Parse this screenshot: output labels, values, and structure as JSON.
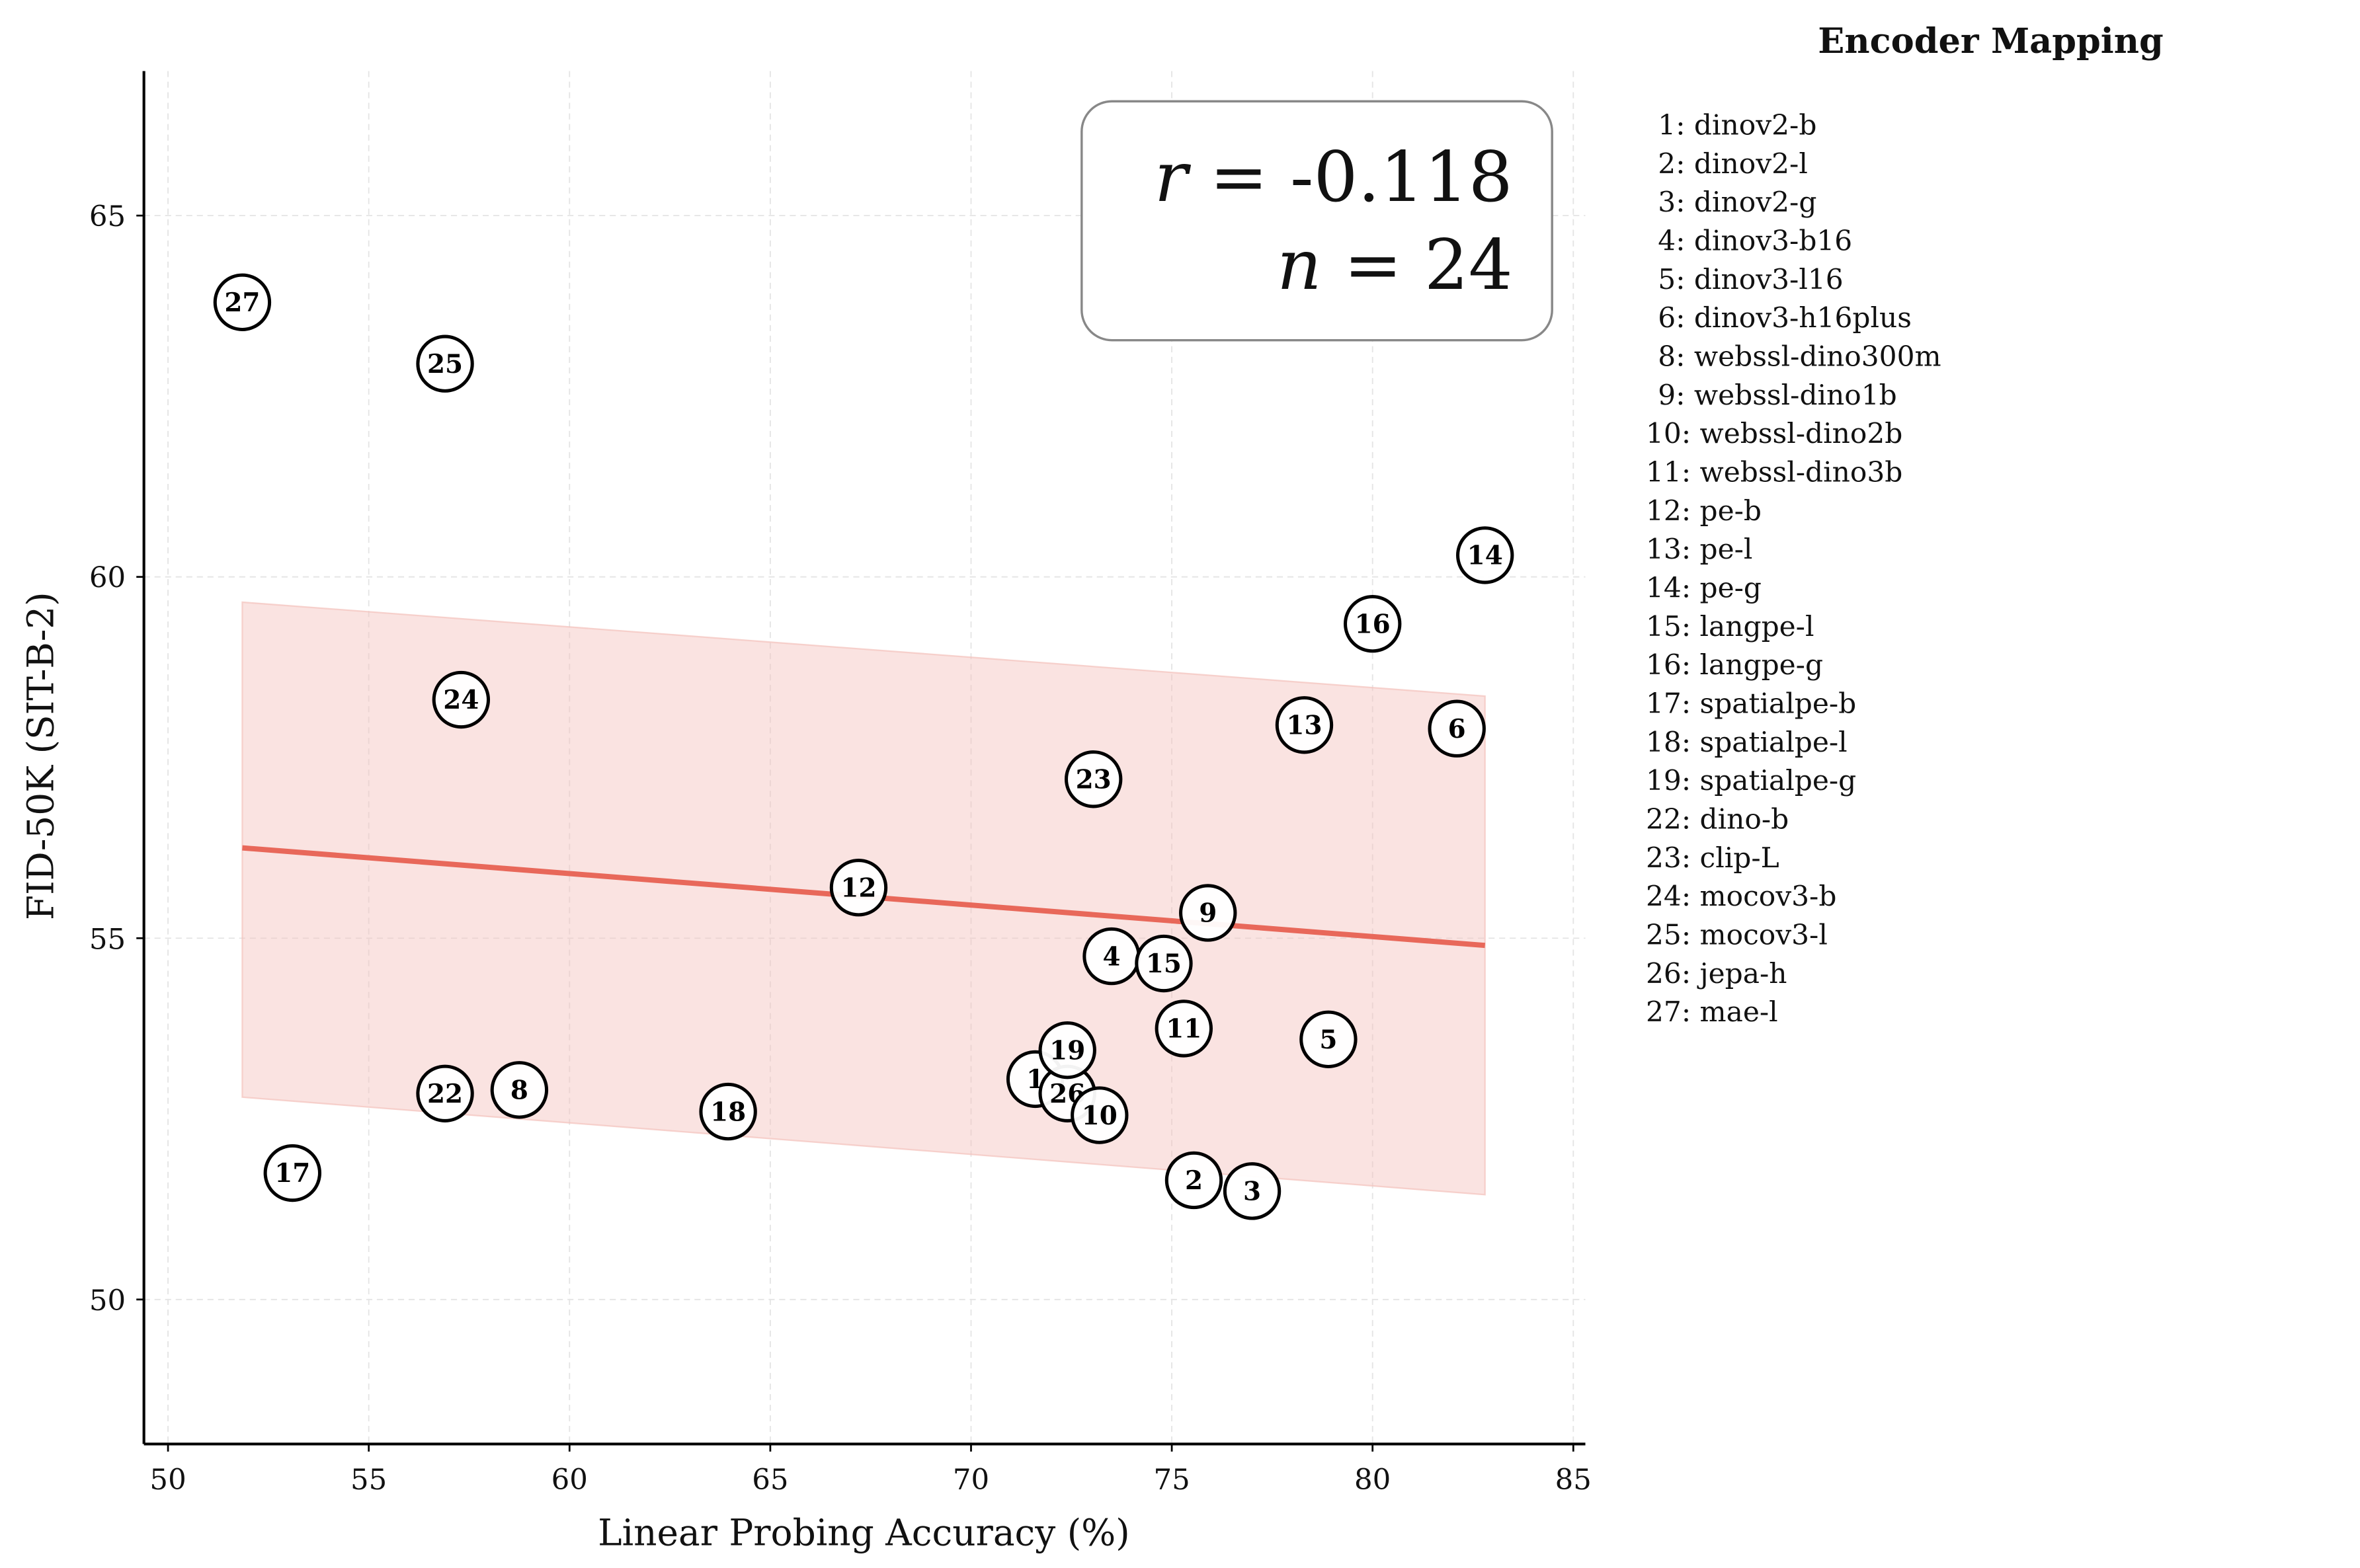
{
  "chart_data": {
    "type": "scatter",
    "xlabel": "Linear Probing Accuracy (%)",
    "ylabel": "FID-50K (SIT-B-2)",
    "xlim": [
      49.4,
      85.3
    ],
    "ylim": [
      48,
      67
    ],
    "xticks": [
      50,
      55,
      60,
      65,
      70,
      75,
      80,
      85
    ],
    "yticks": [
      50,
      55,
      60,
      65
    ],
    "grid": true,
    "points": [
      {
        "id": "27",
        "x": 51.85,
        "y": 63.8
      },
      {
        "id": "25",
        "x": 56.9,
        "y": 62.95
      },
      {
        "id": "24",
        "x": 57.3,
        "y": 58.3
      },
      {
        "id": "14",
        "x": 82.8,
        "y": 60.3
      },
      {
        "id": "16",
        "x": 80.0,
        "y": 59.35
      },
      {
        "id": "13",
        "x": 78.3,
        "y": 57.95
      },
      {
        "id": "6",
        "x": 82.1,
        "y": 57.9
      },
      {
        "id": "23",
        "x": 73.05,
        "y": 57.2
      },
      {
        "id": "12",
        "x": 67.2,
        "y": 55.7
      },
      {
        "id": "9",
        "x": 75.9,
        "y": 55.35
      },
      {
        "id": "4",
        "x": 73.5,
        "y": 54.75
      },
      {
        "id": "15",
        "x": 74.8,
        "y": 54.65
      },
      {
        "id": "11",
        "x": 75.3,
        "y": 53.75
      },
      {
        "id": "5",
        "x": 78.9,
        "y": 53.6
      },
      {
        "id": "1",
        "x": 71.6,
        "y": 53.05
      },
      {
        "id": "26",
        "x": 72.4,
        "y": 52.85
      },
      {
        "id": "10",
        "x": 73.2,
        "y": 52.55
      },
      {
        "id": "19",
        "x": 72.4,
        "y": 53.45
      },
      {
        "id": "2",
        "x": 75.55,
        "y": 51.65
      },
      {
        "id": "3",
        "x": 77.0,
        "y": 51.5
      },
      {
        "id": "22",
        "x": 56.9,
        "y": 52.85
      },
      {
        "id": "8",
        "x": 58.75,
        "y": 52.9
      },
      {
        "id": "18",
        "x": 63.95,
        "y": 52.6
      },
      {
        "id": "17",
        "x": 53.1,
        "y": 51.75
      }
    ],
    "fit_line": {
      "x": [
        51.85,
        82.8
      ],
      "y": [
        56.25,
        54.9
      ],
      "color": "#e8685a"
    },
    "confidence_band": {
      "x": [
        51.85,
        82.8
      ],
      "upper": [
        59.65,
        58.35
      ],
      "lower": [
        52.8,
        51.45
      ],
      "color": "#f4c2bc"
    },
    "stats": {
      "r_label": "r",
      "r_value": "= -0.118",
      "n_label": "n",
      "n_value": "= 24"
    },
    "legend": {
      "title": "Encoder Mapping",
      "placement": "right-outside",
      "entries": [
        "1: dinov2-b",
        "2: dinov2-l",
        "3: dinov2-g",
        "4: dinov3-b16",
        "5: dinov3-l16",
        "6: dinov3-h16plus",
        "8: webssl-dino300m",
        "9: webssl-dino1b",
        "10: webssl-dino2b",
        "11: webssl-dino3b",
        "12: pe-b",
        "13: pe-l",
        "14: pe-g",
        "15: langpe-l",
        "16: langpe-g",
        "17: spatialpe-b",
        "18: spatialpe-l",
        "19: spatialpe-g",
        "22: dino-b",
        "23: clip-L",
        "24: mocov3-b",
        "25: mocov3-l",
        "26: jepa-h",
        "27: mae-l"
      ]
    }
  }
}
